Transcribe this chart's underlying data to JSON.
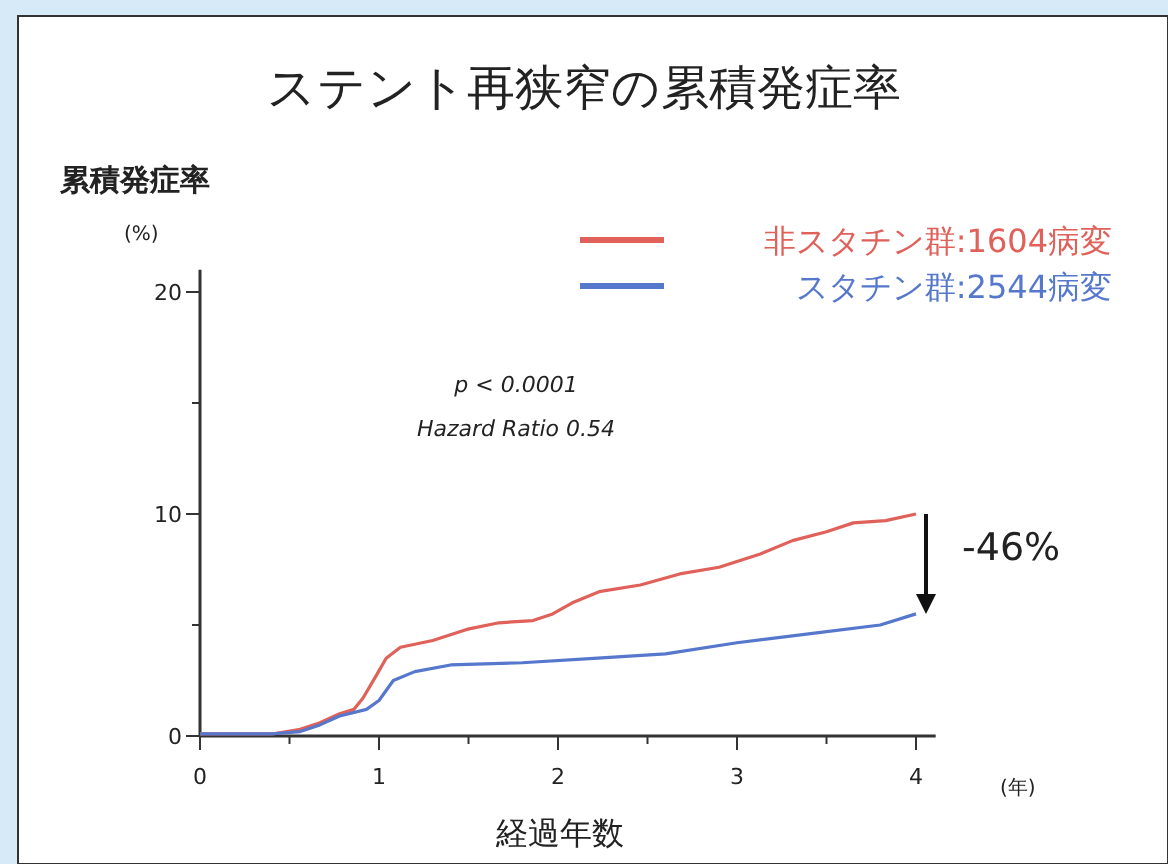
{
  "chart_data": {
    "type": "line",
    "title": "ステント再狭窄の累積発症率",
    "xlabel": "経過年数",
    "ylabel": "累積発症率",
    "annotations": [
      "(%)",
      "(年)",
      "p < 0.0001",
      "Hazard Ratio 0.54",
      {
        "text": "-46%",
        "x": 4,
        "y": 10
      }
    ],
    "xlim": [
      0,
      4.11
    ],
    "xticks": [
      0,
      {
        "value": 0.5,
        "label": null
      },
      1,
      {
        "value": 1.5,
        "label": null
      },
      2,
      {
        "value": 2.5,
        "label": null
      },
      3,
      {
        "value": 3.5,
        "label": null
      },
      4
    ],
    "ylim": [
      0,
      21
    ],
    "yticks": [
      0,
      {
        "value": 5,
        "label": null
      },
      10,
      {
        "value": 15,
        "label": null
      },
      20
    ],
    "grid": false,
    "legend": "top right",
    "series": [
      {
        "name": "非スタチン群:1604病変",
        "color": "#e0605a",
        "x": [
          0,
          0.41,
          0.56,
          0.67,
          0.78,
          0.86,
          0.91,
          0.99,
          1.04,
          1.12,
          1.3,
          1.49,
          1.67,
          1.86,
          1.97,
          2.08,
          2.23,
          2.46,
          2.68,
          2.9,
          3.13,
          3.31,
          3.5,
          3.65,
          3.83,
          4.0
        ],
        "values": [
          0.1,
          0.1,
          0.3,
          0.6,
          1.0,
          1.2,
          1.7,
          2.8,
          3.5,
          4.0,
          4.3,
          4.8,
          5.1,
          5.2,
          5.5,
          6.0,
          6.5,
          6.8,
          7.3,
          7.6,
          8.2,
          8.8,
          9.2,
          9.6,
          9.7,
          10.0
        ]
      },
      {
        "name": "スタチン群:2544病変",
        "color": "#5577cc",
        "x": [
          0,
          0.41,
          0.56,
          0.67,
          0.78,
          0.93,
          1.0,
          1.08,
          1.2,
          1.4,
          1.8,
          2.2,
          2.6,
          3.0,
          3.4,
          3.8,
          4.0
        ],
        "values": [
          0.1,
          0.1,
          0.2,
          0.5,
          0.9,
          1.2,
          1.6,
          2.5,
          2.9,
          3.2,
          3.3,
          3.5,
          3.7,
          4.2,
          4.6,
          5.0,
          5.5
        ]
      }
    ]
  }
}
